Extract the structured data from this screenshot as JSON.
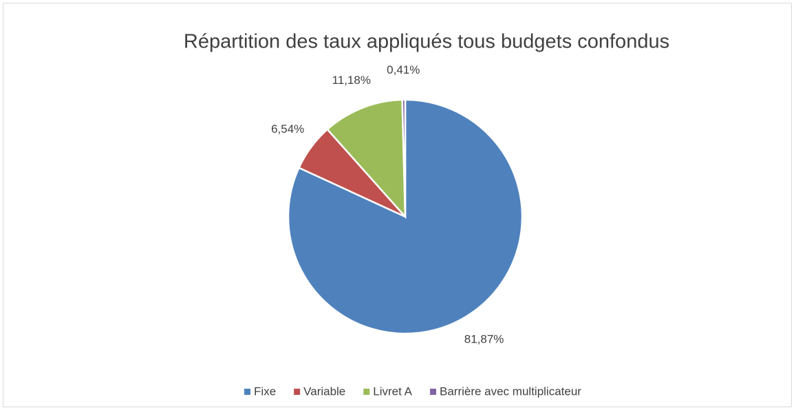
{
  "chart_data": {
    "type": "pie",
    "title": "Répartition des taux appliqués tous budgets confondus",
    "categories": [
      "Fixe",
      "Variable",
      "Livret A",
      "Barrière avec multiplicateur"
    ],
    "values": [
      81.87,
      6.54,
      11.18,
      0.41
    ],
    "value_labels": [
      "81,87%",
      "6,54%",
      "11,18%",
      "0,41%"
    ],
    "colors": [
      "#4f81bd",
      "#c0504d",
      "#9bbb59",
      "#8064a2"
    ],
    "legend": "bottom"
  }
}
